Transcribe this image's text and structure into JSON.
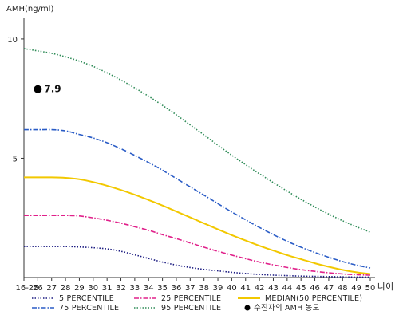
{
  "chart_data": {
    "type": "line",
    "ylabel": "AMH(ng/ml)",
    "xlabel": "나이",
    "x_categories": [
      "16-25",
      "26",
      "27",
      "28",
      "29",
      "30",
      "31",
      "32",
      "33",
      "34",
      "35",
      "36",
      "37",
      "38",
      "39",
      "40",
      "41",
      "42",
      "43",
      "44",
      "45",
      "46",
      "47",
      "48",
      "49",
      "50"
    ],
    "y_ticks": [
      5,
      10
    ],
    "ylim": [
      0,
      10.9
    ],
    "series": [
      {
        "name": "5 PERCENTILE",
        "style": "dotted",
        "color": "#1a1a80",
        "values": [
          1.3,
          1.3,
          1.3,
          1.3,
          1.28,
          1.25,
          1.2,
          1.1,
          0.95,
          0.8,
          0.65,
          0.52,
          0.42,
          0.34,
          0.28,
          0.22,
          0.17,
          0.13,
          0.1,
          0.08,
          0.06,
          0.05,
          0.04,
          0.03,
          0.02,
          0.02
        ]
      },
      {
        "name": "25 PERCENTILE",
        "style": "dashdot",
        "color": "#e0208a",
        "values": [
          2.6,
          2.6,
          2.6,
          2.6,
          2.58,
          2.5,
          2.4,
          2.28,
          2.13,
          1.98,
          1.8,
          1.63,
          1.45,
          1.27,
          1.1,
          0.94,
          0.79,
          0.65,
          0.53,
          0.42,
          0.33,
          0.26,
          0.2,
          0.15,
          0.12,
          0.1
        ]
      },
      {
        "name": "MEDIAN(50 PERCENTILE)",
        "style": "solid",
        "color": "#f2c800",
        "values": [
          4.2,
          4.2,
          4.2,
          4.18,
          4.12,
          4.0,
          3.85,
          3.67,
          3.47,
          3.25,
          3.02,
          2.77,
          2.52,
          2.27,
          2.02,
          1.78,
          1.55,
          1.33,
          1.13,
          0.94,
          0.77,
          0.6,
          0.45,
          0.32,
          0.22,
          0.15
        ]
      },
      {
        "name": "75 PERCENTILE",
        "style": "dashdot",
        "color": "#2a5cc6",
        "values": [
          6.2,
          6.2,
          6.2,
          6.15,
          6.0,
          5.85,
          5.65,
          5.4,
          5.12,
          4.82,
          4.5,
          4.15,
          3.8,
          3.45,
          3.1,
          2.75,
          2.42,
          2.1,
          1.8,
          1.52,
          1.27,
          1.05,
          0.85,
          0.67,
          0.52,
          0.4
        ]
      },
      {
        "name": "95 PERCENTILE",
        "style": "dotted",
        "color": "#2e8b57",
        "values": [
          9.6,
          9.5,
          9.4,
          9.25,
          9.07,
          8.85,
          8.58,
          8.28,
          7.95,
          7.6,
          7.22,
          6.82,
          6.4,
          5.98,
          5.55,
          5.13,
          4.73,
          4.35,
          3.98,
          3.62,
          3.28,
          2.96,
          2.66,
          2.38,
          2.13,
          1.9
        ]
      }
    ],
    "points": [
      {
        "name": "수진자의 AMH 농도",
        "x": "26",
        "y": 7.9,
        "label": "7.9",
        "color": "#000000"
      }
    ],
    "legend": {
      "position": "bottom",
      "items": [
        {
          "series": "5 PERCENTILE",
          "text": "5 PERCENTILE"
        },
        {
          "series": "25 PERCENTILE",
          "text": "25 PERCENTILE"
        },
        {
          "series": "MEDIAN(50 PERCENTILE)",
          "text": "MEDIAN(50 PERCENTILE)"
        },
        {
          "series": "75 PERCENTILE",
          "text": "75 PERCENTILE"
        },
        {
          "series": "95 PERCENTILE",
          "text": "95 PERCENTILE"
        },
        {
          "series": "수진자의 AMH 농도",
          "text": "수진자의 AMH 농도",
          "marker": "dot"
        }
      ]
    }
  }
}
